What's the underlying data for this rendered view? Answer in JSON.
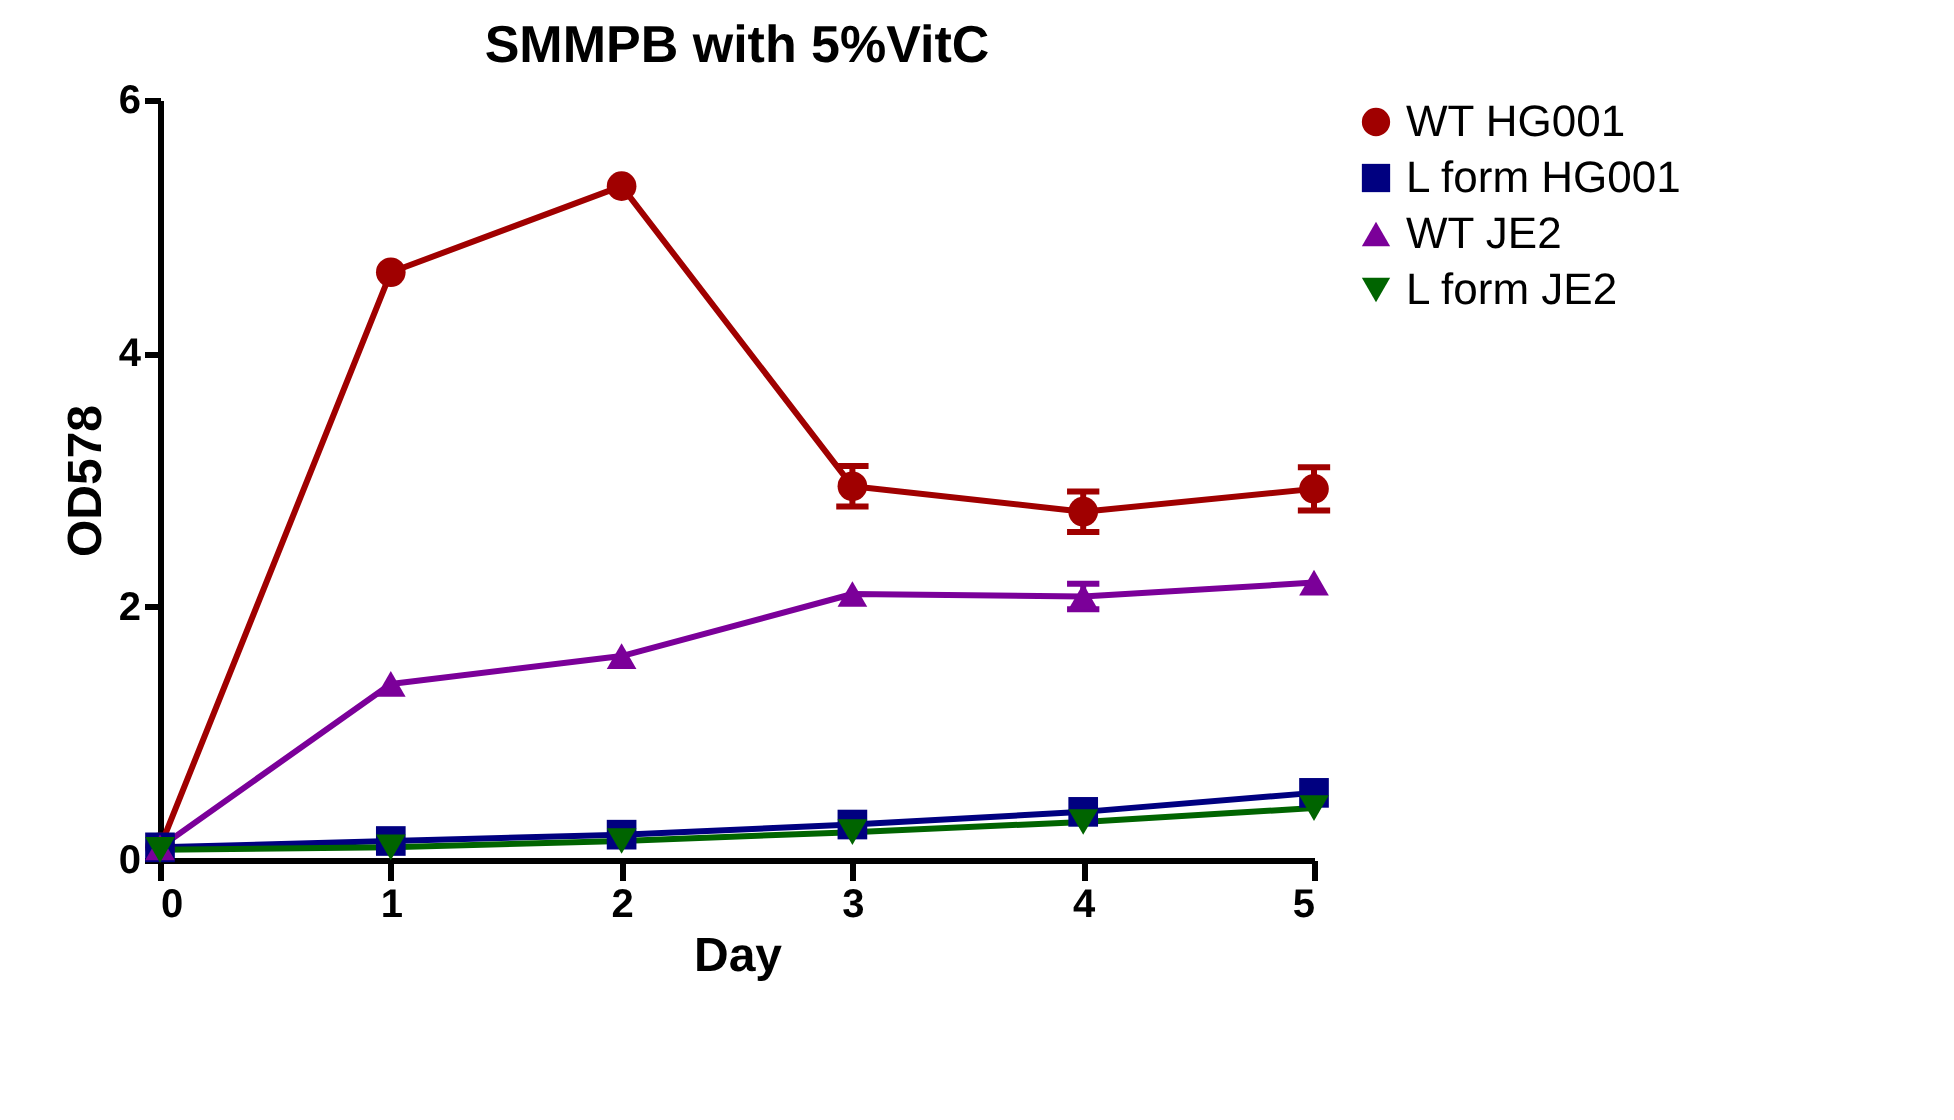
{
  "chart_data": {
    "type": "line",
    "title": "SMMPB with 5%VitC",
    "xlabel": "Day",
    "ylabel": "OD578",
    "x": [
      0,
      1,
      2,
      3,
      4,
      5
    ],
    "series": [
      {
        "name": "WT HG001",
        "color": "#a00000",
        "marker": "circle",
        "values": [
          0.1,
          4.64,
          5.32,
          2.95,
          2.75,
          2.93
        ],
        "errors": [
          null,
          null,
          null,
          0.16,
          0.16,
          0.17
        ]
      },
      {
        "name": "L form HG001",
        "color": "#000080",
        "marker": "square",
        "values": [
          0.1,
          0.15,
          0.2,
          0.28,
          0.38,
          0.53
        ]
      },
      {
        "name": "WT JE2",
        "color": "#7b0099",
        "marker": "triangle",
        "values": [
          0.1,
          1.39,
          1.61,
          2.1,
          2.08,
          2.19
        ],
        "errors": [
          null,
          null,
          null,
          null,
          0.1,
          null
        ]
      },
      {
        "name": "L form JE2",
        "color": "#006400",
        "marker": "triangle-down",
        "values": [
          0.08,
          0.1,
          0.15,
          0.22,
          0.3,
          0.41
        ]
      }
    ],
    "xlim": [
      0,
      5
    ],
    "xticks": [
      0,
      1,
      2,
      3,
      4,
      5
    ],
    "ylim": [
      0,
      6
    ],
    "yticks": [
      0,
      2,
      4,
      6
    ],
    "grid": false,
    "legend": "right",
    "line_style": "solid"
  }
}
